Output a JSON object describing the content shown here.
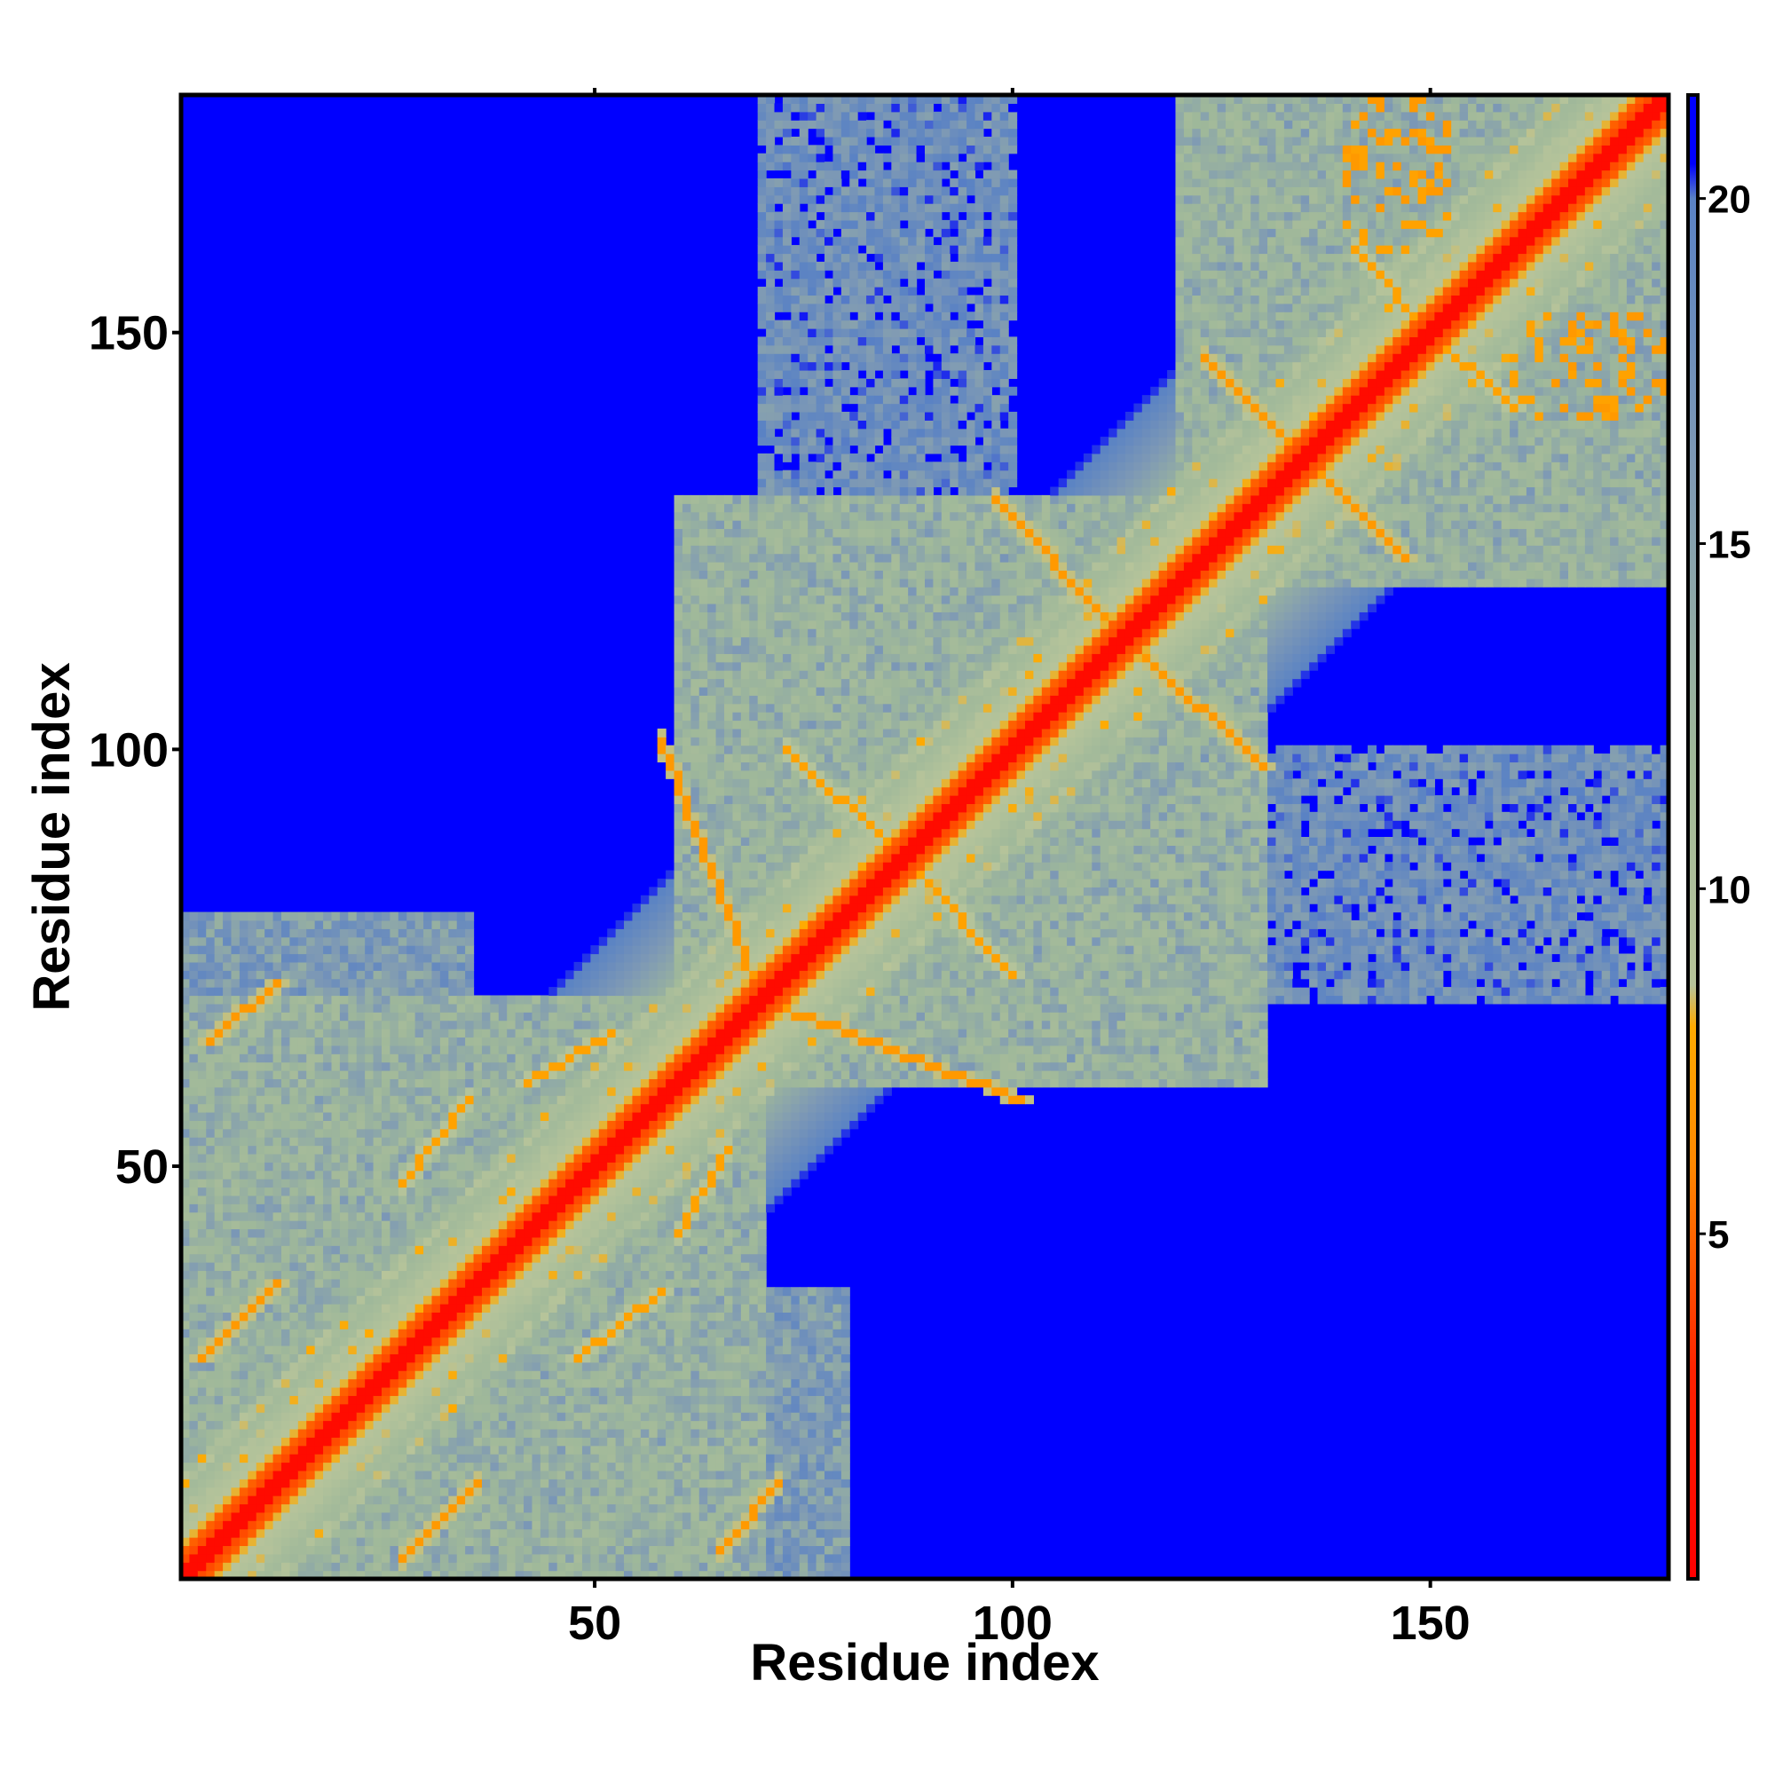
{
  "chart_data": {
    "type": "heatmap",
    "title": "",
    "xlabel": "Residue index",
    "ylabel": "Residue index",
    "n_residues": 178,
    "xlim": [
      1,
      178
    ],
    "ylim": [
      1,
      178
    ],
    "xticks": [
      "50",
      "100",
      "150"
    ],
    "yticks": [
      "50",
      "100",
      "150"
    ],
    "xtick_values": [
      50,
      100,
      150
    ],
    "ytick_values": [
      50,
      100,
      150
    ],
    "colorbar": {
      "range": [
        0,
        21.5
      ],
      "ticks": [
        "5",
        "10",
        "15",
        "20"
      ],
      "tick_values": [
        5,
        10,
        15,
        20
      ],
      "stops": [
        {
          "value": 0,
          "color": "#ff0000"
        },
        {
          "value": 3,
          "color": "#ff2200"
        },
        {
          "value": 6,
          "color": "#ff8800"
        },
        {
          "value": 8,
          "color": "#ffaa00"
        },
        {
          "value": 8.6,
          "color": "#b7c49a"
        },
        {
          "value": 12,
          "color": "#9fb89a"
        },
        {
          "value": 16,
          "color": "#7f9ab4"
        },
        {
          "value": 20,
          "color": "#5a82c4"
        },
        {
          "value": 20.5,
          "color": "#0000ff"
        }
      ]
    },
    "cutoff_color": "#0000ff",
    "diagonal_color": "#ff0000",
    "structural_contacts": [
      {
        "type": "band",
        "a": [
          58,
          70
        ],
        "b": [
          70,
          101
        ],
        "orientation": "antiparallel",
        "value": 7.0
      },
      {
        "type": "band",
        "a": [
          73,
          87
        ],
        "b": [
          87,
          100
        ],
        "orientation": "antiparallel",
        "value": 7.5
      },
      {
        "type": "band",
        "a": [
          98,
          112
        ],
        "b": [
          115,
          130
        ],
        "orientation": "antiparallel",
        "value": 7.0
      },
      {
        "type": "band",
        "a": [
          123,
          135
        ],
        "b": [
          135,
          147
        ],
        "orientation": "antiparallel",
        "value": 7.0
      },
      {
        "type": "band",
        "a": [
          141,
          150
        ],
        "b": [
          150,
          160
        ],
        "orientation": "antiparallel",
        "value": 7.5
      },
      {
        "type": "band",
        "a": [
          27,
          36
        ],
        "b": [
          3,
          12
        ],
        "orientation": "parallel",
        "value": 7.0
      },
      {
        "type": "band",
        "a": [
          65,
          72
        ],
        "b": [
          4,
          12
        ],
        "orientation": "parallel",
        "value": 7.0
      },
      {
        "type": "band",
        "a": [
          27,
          35
        ],
        "b": [
          48,
          58
        ],
        "orientation": "parallel",
        "value": 7.5
      },
      {
        "type": "band",
        "a": [
          60,
          66
        ],
        "b": [
          42,
          52
        ],
        "orientation": "parallel",
        "value": 7.5
      },
      {
        "type": "blob",
        "a": [
          165,
          178
        ],
        "b": [
          140,
          152
        ],
        "value": 7.0
      },
      {
        "type": "blob",
        "a": [
          140,
          152
        ],
        "b": [
          160,
          175
        ],
        "value": 7.5
      }
    ],
    "domains": [
      {
        "range": [
          1,
          70
        ],
        "value": 11
      },
      {
        "range": [
          60,
          130
        ],
        "value": 11
      },
      {
        "range": [
          120,
          178
        ],
        "value": 11
      },
      {
        "range": [
          1,
          35
        ],
        "cross": [
          1,
          80
        ],
        "value": 13
      },
      {
        "range": [
          120,
          178
        ],
        "cross": [
          70,
          100
        ],
        "value": 15
      }
    ]
  }
}
